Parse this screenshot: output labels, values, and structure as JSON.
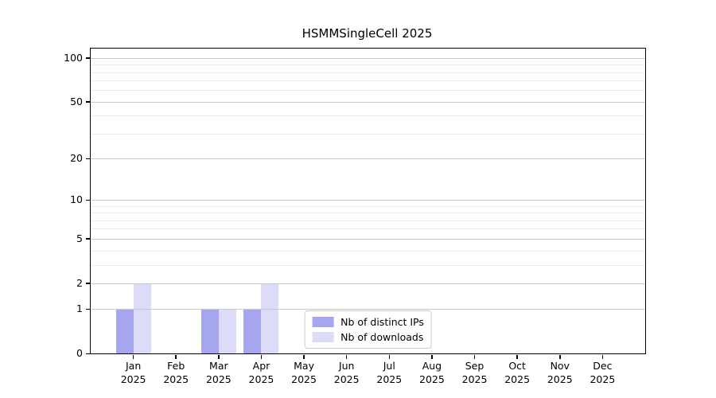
{
  "title": "HSMMSingleCell 2025",
  "chart_data": {
    "type": "bar",
    "title": "HSMMSingleCell 2025",
    "xlabel": "",
    "ylabel": "",
    "categories": [
      "Jan 2025",
      "Feb 2025",
      "Mar 2025",
      "Apr 2025",
      "May 2025",
      "Jun 2025",
      "Jul 2025",
      "Aug 2025",
      "Sep 2025",
      "Oct 2025",
      "Nov 2025",
      "Dec 2025"
    ],
    "x_ticks": [
      {
        "month": "Jan",
        "year": "2025"
      },
      {
        "month": "Feb",
        "year": "2025"
      },
      {
        "month": "Mar",
        "year": "2025"
      },
      {
        "month": "Apr",
        "year": "2025"
      },
      {
        "month": "May",
        "year": "2025"
      },
      {
        "month": "Jun",
        "year": "2025"
      },
      {
        "month": "Jul",
        "year": "2025"
      },
      {
        "month": "Aug",
        "year": "2025"
      },
      {
        "month": "Sep",
        "year": "2025"
      },
      {
        "month": "Oct",
        "year": "2025"
      },
      {
        "month": "Nov",
        "year": "2025"
      },
      {
        "month": "Dec",
        "year": "2025"
      }
    ],
    "series": [
      {
        "name": "Nb of distinct IPs",
        "color": "#a6a6f0",
        "values": [
          1,
          0,
          1,
          1,
          0,
          0,
          0,
          0,
          0,
          0,
          0,
          0
        ]
      },
      {
        "name": "Nb of downloads",
        "color": "#dcdcf8",
        "values": [
          2,
          0,
          1,
          2,
          0,
          0,
          0,
          0,
          0,
          0,
          0,
          0
        ]
      }
    ],
    "y_axis": {
      "scale": "log1p",
      "top_value": 116,
      "major_ticks": [
        {
          "value": 0,
          "label": "0"
        },
        {
          "value": 1,
          "label": "1"
        },
        {
          "value": 2,
          "label": "2"
        },
        {
          "value": 5,
          "label": "5"
        },
        {
          "value": 10,
          "label": "10"
        },
        {
          "value": 20,
          "label": "20"
        },
        {
          "value": 50,
          "label": "50"
        },
        {
          "value": 100,
          "label": "100"
        }
      ],
      "minor_gridlines": [
        3,
        4,
        6,
        7,
        8,
        9,
        30,
        40,
        60,
        70,
        80,
        90
      ]
    },
    "grid": true,
    "legend_position": "lower center inside"
  },
  "colors": {
    "background": "#ffffff",
    "grid_major": "#c9c9c9",
    "grid_minor": "#ebebeb",
    "spine": "#000000",
    "text": "#000000",
    "legend_border": "#cccccc"
  }
}
